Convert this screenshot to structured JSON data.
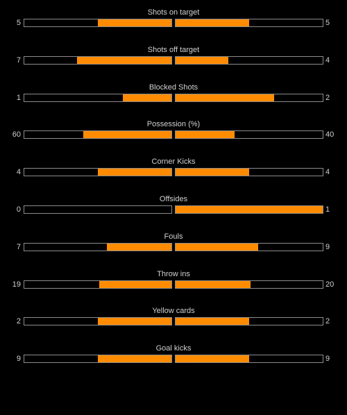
{
  "colors": {
    "background": "#000000",
    "bar_fill": "#ff8c00",
    "bar_border": "#8c8c8c",
    "text": "#d2d2d2"
  },
  "stats": [
    {
      "label": "Shots on target",
      "home": "5",
      "away": "5",
      "home_fraction": 0.5,
      "away_fraction": 0.5
    },
    {
      "label": "Shots off target",
      "home": "7",
      "away": "4",
      "home_fraction": 0.64,
      "away_fraction": 0.36
    },
    {
      "label": "Blocked Shots",
      "home": "1",
      "away": "2",
      "home_fraction": 0.33,
      "away_fraction": 0.67
    },
    {
      "label": "Possession (%)",
      "home": "60",
      "away": "40",
      "home_fraction": 0.6,
      "away_fraction": 0.4
    },
    {
      "label": "Corner Kicks",
      "home": "4",
      "away": "4",
      "home_fraction": 0.5,
      "away_fraction": 0.5
    },
    {
      "label": "Offsides",
      "home": "0",
      "away": "1",
      "home_fraction": 0,
      "away_fraction": 1
    },
    {
      "label": "Fouls",
      "home": "7",
      "away": "9",
      "home_fraction": 0.44,
      "away_fraction": 0.56
    },
    {
      "label": "Throw ins",
      "home": "19",
      "away": "20",
      "home_fraction": 0.49,
      "away_fraction": 0.51
    },
    {
      "label": "Yellow cards",
      "home": "2",
      "away": "2",
      "home_fraction": 0.5,
      "away_fraction": 0.5
    },
    {
      "label": "Goal kicks",
      "home": "9",
      "away": "9",
      "home_fraction": 0.5,
      "away_fraction": 0.5
    }
  ]
}
